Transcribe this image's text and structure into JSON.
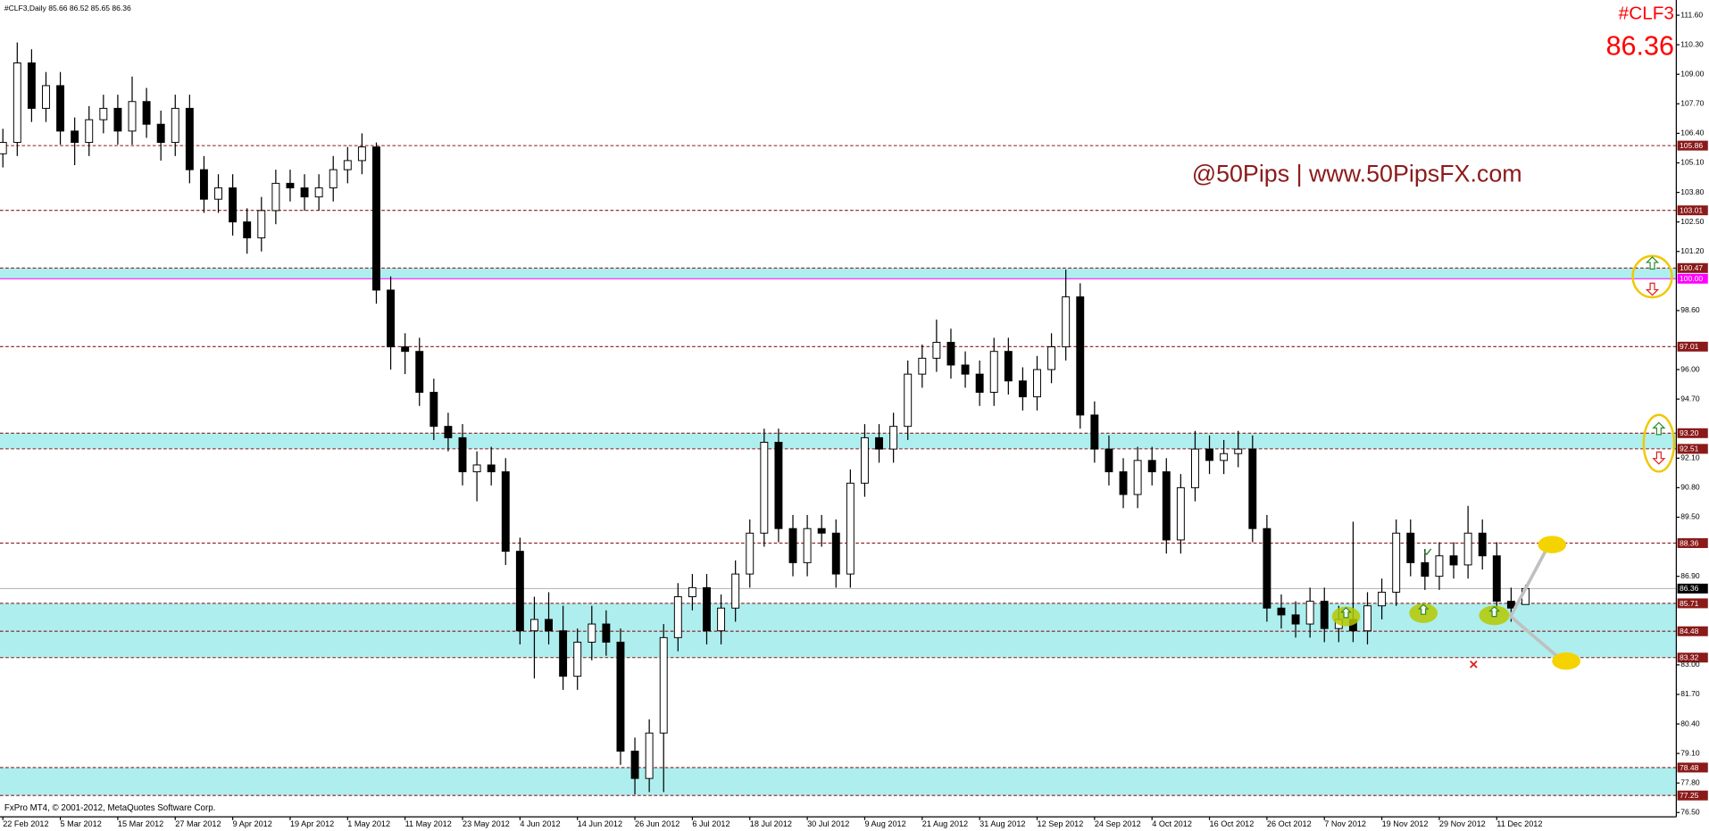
{
  "chart_data": {
    "type": "candlestick",
    "header": "#CLF3,Daily  85.66 86.52 85.65 86.36",
    "symbol": "#CLF3",
    "last_price": 86.36,
    "watermark": "@50Pips | www.50PipsFX.com",
    "copyright": "FxPro MT4, © 2001-2012, MetaQuotes Software Corp.",
    "bull_color": "#ffffff",
    "bear_color": "#000000",
    "zone_color": "#afeeee",
    "xlim": [
      -0.2,
      116.5
    ],
    "ylim": [
      76.31,
      112.27
    ],
    "xticks": [
      {
        "value": 0,
        "label": "22 Feb 2012"
      },
      {
        "value": 4,
        "label": "5 Mar 2012"
      },
      {
        "value": 8,
        "label": "15 Mar 2012"
      },
      {
        "value": 12,
        "label": "27 Mar 2012"
      },
      {
        "value": 16,
        "label": "9 Apr 2012"
      },
      {
        "value": 20,
        "label": "19 Apr 2012"
      },
      {
        "value": 24,
        "label": "1 May 2012"
      },
      {
        "value": 28,
        "label": "11 May 2012"
      },
      {
        "value": 32,
        "label": "23 May 2012"
      },
      {
        "value": 36,
        "label": "4 Jun 2012"
      },
      {
        "value": 40,
        "label": "14 Jun 2012"
      },
      {
        "value": 44,
        "label": "26 Jun 2012"
      },
      {
        "value": 48,
        "label": "6 Jul 2012"
      },
      {
        "value": 52,
        "label": "18 Jul 2012"
      },
      {
        "value": 56,
        "label": "30 Jul 2012"
      },
      {
        "value": 60,
        "label": "9 Aug 2012"
      },
      {
        "value": 64,
        "label": "21 Aug 2012"
      },
      {
        "value": 68,
        "label": "31 Aug 2012"
      },
      {
        "value": 72,
        "label": "12 Sep 2012"
      },
      {
        "value": 76,
        "label": "24 Sep 2012"
      },
      {
        "value": 80,
        "label": "4 Oct 2012"
      },
      {
        "value": 84,
        "label": "16 Oct 2012"
      },
      {
        "value": 88,
        "label": "26 Oct 2012"
      },
      {
        "value": 92,
        "label": "7 Nov 2012"
      },
      {
        "value": 96,
        "label": "19 Nov 2012"
      },
      {
        "value": 100,
        "label": "29 Nov 2012"
      },
      {
        "value": 104,
        "label": "11 Dec 2012"
      }
    ],
    "yticks": [
      {
        "value": 111.6,
        "label": "111.60"
      },
      {
        "value": 110.3,
        "label": "110.30"
      },
      {
        "value": 109,
        "label": "109.00"
      },
      {
        "value": 107.7,
        "label": "107.70"
      },
      {
        "value": 106.4,
        "label": "106.40"
      },
      {
        "value": 105.1,
        "label": "105.10"
      },
      {
        "value": 103.8,
        "label": "103.80"
      },
      {
        "value": 102.5,
        "label": "102.50"
      },
      {
        "value": 101.2,
        "label": "101.20"
      },
      {
        "value": 98.6,
        "label": "98.60"
      },
      {
        "value": 96,
        "label": "96.00"
      },
      {
        "value": 94.7,
        "label": "94.70"
      },
      {
        "value": 92.1,
        "label": "92.10"
      },
      {
        "value": 90.8,
        "label": "90.80"
      },
      {
        "value": 89.5,
        "label": "89.50"
      },
      {
        "value": 86.9,
        "label": "86.90"
      },
      {
        "value": 83,
        "label": "83.00"
      },
      {
        "value": 81.7,
        "label": "81.70"
      },
      {
        "value": 80.4,
        "label": "80.40"
      },
      {
        "value": 79.1,
        "label": "79.10"
      },
      {
        "value": 77.8,
        "label": "77.80"
      },
      {
        "value": 76.5,
        "label": "76.50"
      }
    ],
    "zones": [
      [
        100,
        100.47
      ],
      [
        92.51,
        93.2
      ],
      [
        83.32,
        85.71
      ],
      [
        77.25,
        78.48
      ]
    ],
    "levels": [
      {
        "value": 105.86,
        "label": "105.86",
        "color": "#8b1a1a"
      },
      {
        "value": 103.01,
        "label": "103.01",
        "color": "#8b1a1a"
      },
      {
        "value": 100.47,
        "label": "100.47",
        "color": "#8b1a1a"
      },
      {
        "value": 100,
        "label": "100.00",
        "color": "#ff00ff"
      },
      {
        "value": 97.01,
        "label": "97.01",
        "color": "#8b1a1a"
      },
      {
        "value": 93.2,
        "label": "93.20",
        "color": "#8b1a1a"
      },
      {
        "value": 92.51,
        "label": "92.51",
        "color": "#8b1a1a"
      },
      {
        "value": 88.36,
        "label": "88.36",
        "color": "#8b1a1a"
      },
      {
        "value": 86.36,
        "label": "86.36",
        "color": "#000000"
      },
      {
        "value": 85.71,
        "label": "85.71",
        "color": "#8b1a1a"
      },
      {
        "value": 84.48,
        "label": "84.48",
        "color": "#8b1a1a"
      },
      {
        "value": 83.32,
        "label": "83.32",
        "color": "#8b1a1a"
      },
      {
        "value": 78.48,
        "label": "78.48",
        "color": "#8b1a1a"
      },
      {
        "value": 77.25,
        "label": "77.25",
        "color": "#8b1a1a"
      }
    ],
    "open": [
      105.5,
      106.0,
      109.5,
      107.5,
      108.5,
      106.5,
      106.0,
      107.0,
      107.5,
      106.5,
      107.8,
      106.8,
      106.0,
      107.5,
      104.8,
      103.5,
      104.0,
      102.5,
      101.8,
      103.0,
      104.2,
      104.0,
      103.6,
      104.0,
      104.8,
      105.2,
      105.8,
      99.5,
      97.0,
      96.8,
      95.0,
      93.5,
      93.0,
      91.5,
      91.8,
      91.5,
      88.0,
      84.5,
      85.0,
      84.5,
      82.5,
      84.0,
      84.8,
      84.0,
      79.2,
      78.0,
      80.0,
      84.2,
      86.0,
      86.4,
      84.5,
      85.5,
      87.0,
      88.8,
      92.8,
      89.0,
      87.5,
      89.0,
      88.8,
      87.0,
      91.0,
      93.0,
      92.5,
      93.5,
      95.8,
      96.5,
      97.2,
      96.2,
      95.8,
      95.0,
      96.8,
      95.5,
      94.8,
      96.0,
      97.0,
      99.2,
      94.0,
      92.5,
      91.5,
      90.5,
      92.0,
      91.5,
      88.5,
      90.8,
      92.5,
      92.0,
      92.3,
      92.5,
      89.0,
      85.5,
      85.2,
      84.8,
      85.8,
      84.6,
      85.0,
      84.5,
      85.6,
      86.2,
      88.8,
      87.5,
      86.9,
      87.8,
      87.4,
      88.8,
      87.8,
      85.8,
      85.66
    ],
    "high": [
      106.6,
      110.4,
      110.1,
      109.1,
      109.1,
      107.1,
      107.6,
      108.1,
      108.1,
      108.9,
      108.4,
      107.4,
      108.1,
      108.1,
      105.4,
      104.6,
      104.6,
      103.1,
      103.6,
      104.8,
      104.8,
      104.6,
      104.6,
      105.4,
      105.8,
      106.4,
      106.0,
      100.1,
      97.6,
      97.4,
      95.6,
      94.1,
      93.6,
      92.4,
      92.6,
      92.1,
      88.6,
      86.0,
      86.2,
      85.6,
      84.6,
      85.6,
      85.4,
      84.6,
      79.8,
      80.6,
      84.8,
      86.6,
      87.0,
      87.0,
      86.1,
      87.6,
      89.4,
      93.4,
      93.4,
      89.6,
      89.6,
      89.6,
      89.4,
      91.6,
      93.6,
      93.6,
      94.1,
      96.4,
      97.1,
      98.2,
      97.8,
      96.8,
      96.4,
      97.4,
      97.4,
      96.1,
      96.6,
      97.6,
      100.4,
      99.8,
      94.6,
      93.1,
      92.1,
      92.6,
      92.6,
      92.1,
      91.4,
      93.3,
      93.1,
      92.9,
      93.3,
      93.1,
      89.6,
      86.1,
      85.8,
      86.4,
      86.4,
      85.6,
      89.3,
      86.2,
      86.8,
      89.4,
      89.4,
      88.1,
      88.4,
      88.4,
      90.0,
      89.4,
      88.4,
      86.4,
      86.52
    ],
    "low": [
      104.9,
      105.4,
      106.9,
      106.9,
      105.9,
      105.0,
      105.4,
      106.4,
      105.9,
      105.9,
      106.2,
      105.2,
      105.4,
      104.2,
      102.9,
      102.9,
      101.9,
      101.1,
      101.2,
      102.4,
      103.4,
      103.0,
      103.0,
      103.4,
      104.2,
      104.6,
      98.9,
      96.0,
      95.8,
      94.4,
      92.9,
      92.4,
      90.9,
      90.2,
      90.9,
      87.4,
      83.9,
      82.4,
      83.9,
      81.9,
      81.9,
      83.2,
      83.4,
      78.6,
      77.3,
      77.4,
      77.4,
      83.6,
      85.4,
      83.9,
      83.9,
      84.9,
      86.4,
      88.2,
      88.4,
      86.9,
      86.9,
      88.2,
      86.4,
      86.4,
      90.4,
      91.9,
      91.9,
      92.9,
      95.2,
      95.9,
      95.6,
      95.2,
      94.4,
      94.4,
      94.9,
      94.2,
      94.2,
      95.4,
      96.4,
      93.4,
      91.9,
      90.9,
      89.9,
      89.9,
      90.9,
      87.9,
      87.9,
      90.2,
      91.4,
      91.4,
      91.7,
      88.4,
      84.9,
      84.6,
      84.2,
      84.2,
      84.0,
      84.0,
      84.0,
      83.9,
      85.0,
      85.6,
      86.9,
      86.3,
      86.3,
      86.8,
      86.8,
      87.2,
      85.2,
      84.9,
      85.65
    ],
    "close": [
      106.0,
      109.5,
      107.5,
      108.5,
      106.5,
      106.0,
      107.0,
      107.5,
      106.5,
      107.8,
      106.8,
      106.0,
      107.5,
      104.8,
      103.5,
      104.0,
      102.5,
      101.8,
      103.0,
      104.2,
      104.0,
      103.6,
      104.0,
      104.8,
      105.2,
      105.8,
      99.5,
      97.0,
      96.8,
      95.0,
      93.5,
      93.0,
      91.5,
      91.8,
      91.5,
      88.0,
      84.5,
      85.0,
      84.5,
      82.5,
      84.0,
      84.8,
      84.0,
      79.2,
      78.0,
      80.0,
      84.2,
      86.0,
      86.4,
      84.5,
      85.5,
      87.0,
      88.8,
      92.8,
      89.0,
      87.5,
      89.0,
      88.8,
      87.0,
      91.0,
      93.0,
      92.5,
      93.5,
      95.8,
      96.5,
      97.2,
      96.2,
      95.8,
      95.0,
      96.8,
      95.5,
      94.8,
      96.0,
      97.0,
      99.2,
      94.0,
      92.5,
      91.5,
      90.5,
      92.0,
      91.5,
      88.5,
      90.8,
      92.5,
      92.0,
      92.3,
      92.5,
      89.0,
      85.5,
      85.2,
      84.8,
      85.8,
      84.6,
      85.0,
      84.5,
      85.6,
      86.2,
      88.8,
      87.5,
      86.9,
      87.8,
      87.4,
      88.8,
      87.8,
      85.8,
      85.5,
      86.36
    ]
  }
}
